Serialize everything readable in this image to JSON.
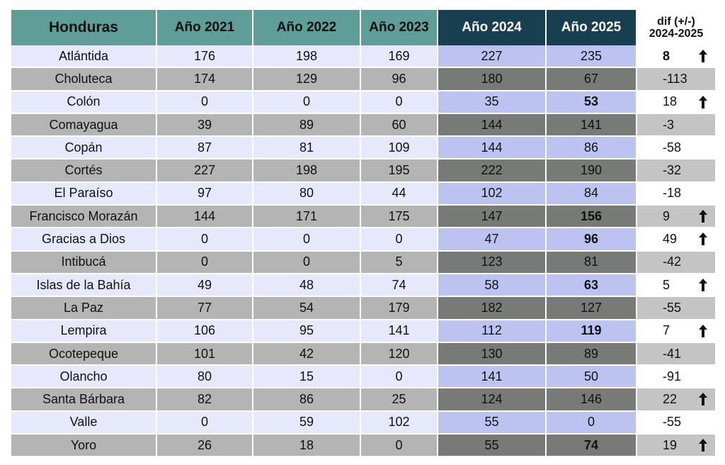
{
  "chart_data": {
    "type": "table",
    "columns": [
      "Honduras",
      "Año 2021",
      "Año 2022",
      "Año 2023",
      "Año 2024",
      "Año 2025"
    ],
    "diff_header": [
      "dif (+/-)",
      "2024-2025"
    ],
    "rows": [
      {
        "name": "Atlántida",
        "values": [
          176,
          198,
          169,
          227,
          235
        ],
        "diff": "8",
        "up": true,
        "bold_2025": false,
        "bold_diff": true
      },
      {
        "name": "Choluteca",
        "values": [
          174,
          129,
          96,
          180,
          67
        ],
        "diff": "-113",
        "up": false,
        "bold_2025": false,
        "bold_diff": false
      },
      {
        "name": "Colón",
        "values": [
          0,
          0,
          0,
          35,
          53
        ],
        "diff": "18",
        "up": true,
        "bold_2025": true,
        "bold_diff": false
      },
      {
        "name": "Comayagua",
        "values": [
          39,
          89,
          60,
          144,
          141
        ],
        "diff": "-3",
        "up": false,
        "bold_2025": false,
        "bold_diff": false
      },
      {
        "name": "Copán",
        "values": [
          87,
          81,
          109,
          144,
          86
        ],
        "diff": "-58",
        "up": false,
        "bold_2025": false,
        "bold_diff": false
      },
      {
        "name": "Cortés",
        "values": [
          227,
          198,
          195,
          222,
          190
        ],
        "diff": "-32",
        "up": false,
        "bold_2025": false,
        "bold_diff": false
      },
      {
        "name": "El Paraíso",
        "values": [
          97,
          80,
          44,
          102,
          84
        ],
        "diff": "-18",
        "up": false,
        "bold_2025": false,
        "bold_diff": false
      },
      {
        "name": "Francisco Morazán",
        "values": [
          144,
          171,
          175,
          147,
          156
        ],
        "diff": "9",
        "up": true,
        "bold_2025": true,
        "bold_diff": false
      },
      {
        "name": "Gracias a Dios",
        "values": [
          0,
          0,
          0,
          47,
          96
        ],
        "diff": "49",
        "up": true,
        "bold_2025": true,
        "bold_diff": false
      },
      {
        "name": "Intibucá",
        "values": [
          0,
          0,
          5,
          123,
          81
        ],
        "diff": "-42",
        "up": false,
        "bold_2025": false,
        "bold_diff": false
      },
      {
        "name": "Islas de la Bahía",
        "values": [
          49,
          48,
          74,
          58,
          63
        ],
        "diff": "5",
        "up": true,
        "bold_2025": true,
        "bold_diff": false
      },
      {
        "name": "La Paz",
        "values": [
          77,
          54,
          179,
          182,
          127
        ],
        "diff": "-55",
        "up": false,
        "bold_2025": false,
        "bold_diff": false
      },
      {
        "name": "Lempira",
        "values": [
          106,
          95,
          141,
          112,
          119
        ],
        "diff": "7",
        "up": true,
        "bold_2025": true,
        "bold_diff": false
      },
      {
        "name": "Ocotepeque",
        "values": [
          101,
          42,
          120,
          130,
          89
        ],
        "diff": "-41",
        "up": false,
        "bold_2025": false,
        "bold_diff": false
      },
      {
        "name": "Olancho",
        "values": [
          80,
          15,
          0,
          141,
          50
        ],
        "diff": "-91",
        "up": false,
        "bold_2025": false,
        "bold_diff": false
      },
      {
        "name": "Santa Bárbara",
        "values": [
          82,
          86,
          25,
          124,
          146
        ],
        "diff": "22",
        "up": true,
        "bold_2025": false,
        "bold_diff": false
      },
      {
        "name": "Valle",
        "values": [
          0,
          59,
          102,
          55,
          0
        ],
        "diff": "-55",
        "up": false,
        "bold_2025": false,
        "bold_diff": false
      },
      {
        "name": "Yoro",
        "values": [
          26,
          18,
          0,
          55,
          74
        ],
        "diff": "19",
        "up": true,
        "bold_2025": true,
        "bold_diff": false
      }
    ],
    "colors": {
      "header_teal": "#5f9e98",
      "header_dark": "#173f4f",
      "row_light": "#e6e9fb",
      "row_gray": "#b4b4b4",
      "highlight_light": "#bcc3f0",
      "highlight_dark": "#777a76"
    },
    "icons": {
      "increase": "arrow-up-icon"
    }
  }
}
